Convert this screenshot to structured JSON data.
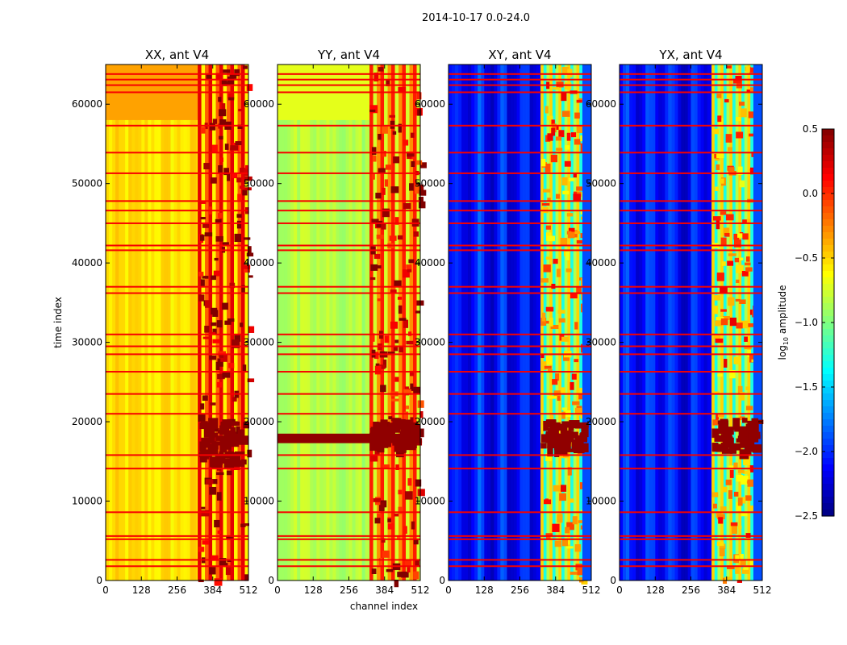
{
  "chart_data": {
    "type": "heatmap",
    "figure_title": "2014-10-17 0.0-24.0",
    "xlabel": "channel index",
    "ylabel": "time index",
    "xlim": [
      0,
      512
    ],
    "ylim": [
      0,
      65000
    ],
    "x_ticks": [
      "0",
      "128",
      "256",
      "384",
      "512"
    ],
    "x_tick_values": [
      0,
      128,
      256,
      384,
      512
    ],
    "y_ticks": [
      "0",
      "10000",
      "20000",
      "30000",
      "40000",
      "50000",
      "60000"
    ],
    "y_tick_values": [
      0,
      10000,
      20000,
      30000,
      40000,
      50000,
      60000
    ],
    "colorbar": {
      "label": "log10 amplitude",
      "label_base": "log",
      "label_sub": "10",
      "label_rest": " amplitude",
      "range": [
        -2.5,
        0.5
      ],
      "ticks": [
        "0.5",
        "0.0",
        "−0.5",
        "−1.0",
        "−1.5",
        "−2.0",
        "−2.5"
      ],
      "tick_values": [
        0.5,
        0.0,
        -0.5,
        -1.0,
        -1.5,
        -2.0,
        -2.5
      ],
      "colormap": "jet"
    },
    "panels": [
      {
        "title": "XX, ant V4",
        "base_level": -0.55,
        "band_level": -0.3,
        "band_start_channel": 330,
        "upper_block": {
          "from_time": 58000,
          "level": -0.35
        },
        "dense_rfi_time": [
          15000,
          20500
        ],
        "dense_rfi_channels": [
          330,
          480
        ]
      },
      {
        "title": "YY, ant V4",
        "base_level": -0.85,
        "band_level": -0.45,
        "band_start_channel": 330,
        "upper_block": {
          "from_time": 58000,
          "level": -0.7
        },
        "full_width_rfi_time": [
          17300,
          18500
        ],
        "dense_rfi_time": [
          17000,
          20500
        ],
        "dense_rfi_channels": [
          330,
          480
        ]
      },
      {
        "title": "XY, ant V4",
        "base_level": -2.1,
        "band_level": -1.0,
        "band_start_channel": 330,
        "band_end_channel": 480,
        "dense_rfi_time": [
          16500,
          20500
        ],
        "dense_rfi_channels": [
          330,
          480
        ]
      },
      {
        "title": "YX, ant V4",
        "base_level": -2.1,
        "band_level": -1.0,
        "band_start_channel": 330,
        "band_end_channel": 480,
        "dense_rfi_time": [
          16500,
          20500
        ],
        "dense_rfi_channels": [
          330,
          480
        ]
      }
    ],
    "flagged_times": [
      1800,
      2600,
      5200,
      5600,
      8600,
      14100,
      15800,
      21000,
      23500,
      26300,
      28500,
      29500,
      31000,
      36200,
      37000,
      41600,
      42200,
      45000,
      46600,
      47800,
      51300,
      53900,
      57300,
      61500,
      62400,
      63100,
      63800
    ]
  }
}
